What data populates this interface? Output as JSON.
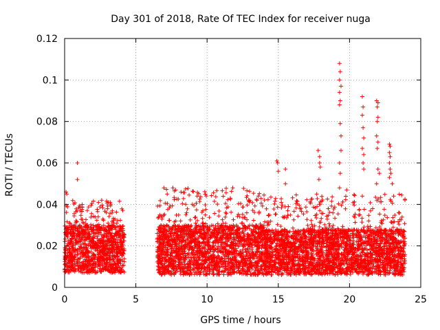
{
  "chart_data": {
    "type": "scatter",
    "title": "Day 301 of 2018, Rate Of TEC Index for receiver nuga",
    "xlabel": "GPS time / hours",
    "ylabel": "ROTI / TECUs",
    "xlim": [
      0,
      25
    ],
    "ylim": [
      0,
      0.12
    ],
    "xticks": [
      0,
      5,
      10,
      15,
      20,
      25
    ],
    "yticks": [
      0,
      0.02,
      0.04,
      0.06,
      0.08,
      0.1,
      0.12
    ],
    "xtick_labels": [
      "0",
      "5",
      "10",
      "15",
      "20",
      "25"
    ],
    "ytick_labels": [
      "0",
      "0.02",
      "0.04",
      "0.06",
      "0.08",
      "0.1",
      "0.12"
    ],
    "grid": true,
    "marker": "plus",
    "color": "#ff0000",
    "bands": [
      {
        "x": [
          0.0,
          4.2
        ],
        "ymin": 0.007,
        "ymax": 0.03,
        "extreme": 0.042
      },
      {
        "x": [
          6.5,
          14.0
        ],
        "ymin": 0.006,
        "ymax": 0.03,
        "extreme": 0.048
      },
      {
        "x": [
          14.0,
          23.9
        ],
        "ymin": 0.006,
        "ymax": 0.028,
        "extreme": 0.045
      }
    ],
    "points": [
      [
        0.1,
        0.046
      ],
      [
        0.15,
        0.045
      ],
      [
        0.9,
        0.06
      ],
      [
        0.9,
        0.052
      ],
      [
        2.6,
        0.042
      ],
      [
        3.2,
        0.041
      ],
      [
        7.2,
        0.045
      ],
      [
        7.6,
        0.048
      ],
      [
        7.8,
        0.047
      ],
      [
        8.5,
        0.04
      ],
      [
        11.8,
        0.048
      ],
      [
        13.5,
        0.042
      ],
      [
        14.9,
        0.061
      ],
      [
        14.95,
        0.06
      ],
      [
        15.0,
        0.056
      ],
      [
        15.5,
        0.057
      ],
      [
        15.5,
        0.05
      ],
      [
        17.8,
        0.066
      ],
      [
        17.9,
        0.063
      ],
      [
        17.9,
        0.06
      ],
      [
        17.95,
        0.058
      ],
      [
        17.85,
        0.052
      ],
      [
        17.7,
        0.045
      ],
      [
        19.3,
        0.108
      ],
      [
        19.35,
        0.104
      ],
      [
        19.3,
        0.1
      ],
      [
        19.4,
        0.097
      ],
      [
        19.3,
        0.094
      ],
      [
        19.35,
        0.09
      ],
      [
        19.3,
        0.088
      ],
      [
        19.35,
        0.079
      ],
      [
        19.4,
        0.073
      ],
      [
        19.4,
        0.066
      ],
      [
        19.3,
        0.06
      ],
      [
        19.35,
        0.055
      ],
      [
        19.3,
        0.048
      ],
      [
        19.8,
        0.047
      ],
      [
        20.9,
        0.092
      ],
      [
        20.95,
        0.087
      ],
      [
        20.9,
        0.083
      ],
      [
        20.95,
        0.077
      ],
      [
        21.0,
        0.072
      ],
      [
        20.9,
        0.067
      ],
      [
        21.0,
        0.064
      ],
      [
        20.95,
        0.06
      ],
      [
        21.0,
        0.057
      ],
      [
        20.9,
        0.044
      ],
      [
        21.9,
        0.09
      ],
      [
        22.0,
        0.089
      ],
      [
        21.95,
        0.087
      ],
      [
        22.0,
        0.082
      ],
      [
        21.95,
        0.08
      ],
      [
        21.9,
        0.073
      ],
      [
        22.0,
        0.07
      ],
      [
        21.95,
        0.067
      ],
      [
        22.0,
        0.057
      ],
      [
        22.1,
        0.055
      ],
      [
        21.9,
        0.05
      ],
      [
        22.8,
        0.069
      ],
      [
        22.85,
        0.068
      ],
      [
        22.8,
        0.065
      ],
      [
        22.85,
        0.063
      ],
      [
        22.8,
        0.06
      ],
      [
        22.85,
        0.057
      ],
      [
        22.9,
        0.055
      ],
      [
        22.8,
        0.053
      ],
      [
        23.0,
        0.05
      ],
      [
        23.1,
        0.044
      ]
    ]
  }
}
